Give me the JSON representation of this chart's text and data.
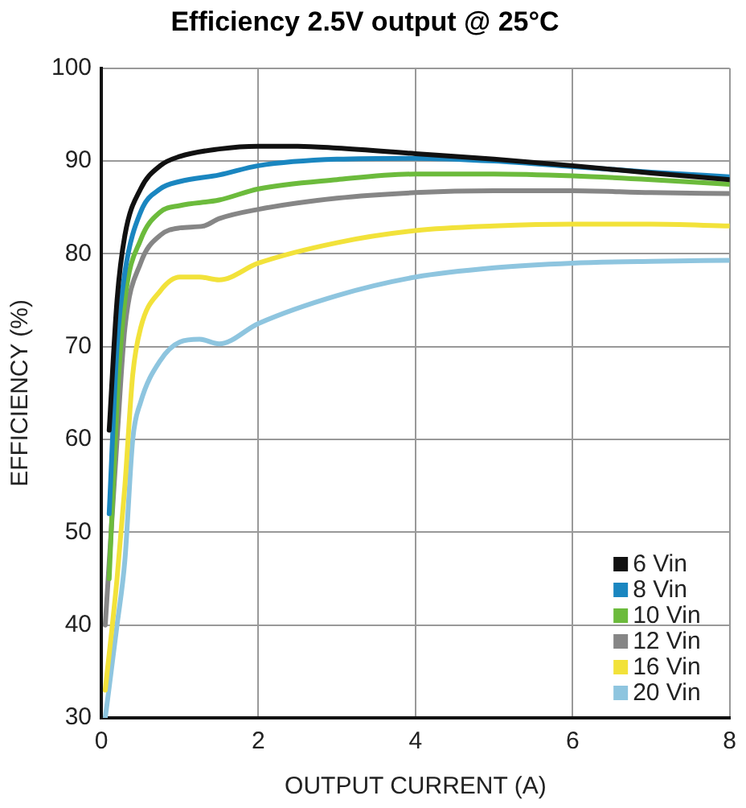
{
  "chart_data": {
    "type": "line",
    "title": "Efficiency 2.5V output @ 25°C",
    "xlabel": "OUTPUT CURRENT (A)",
    "ylabel": "EFFICIENCY (%)",
    "xlim": [
      0,
      8
    ],
    "xticks": [
      0,
      2,
      4,
      6,
      8
    ],
    "ylim": [
      30,
      100
    ],
    "yticks": [
      30,
      40,
      50,
      60,
      70,
      80,
      90,
      100
    ],
    "grid": true,
    "legend": "bottom right",
    "marker": "none",
    "line_style": "solid",
    "series": [
      {
        "name": "6 Vin",
        "color": "#111111",
        "x": [
          0.1,
          0.2,
          0.3,
          0.5,
          0.75,
          1,
          1.5,
          2,
          2.5,
          3,
          4,
          5,
          6,
          7,
          8
        ],
        "values": [
          61,
          75,
          82,
          87,
          89.5,
          90.5,
          91.3,
          91.6,
          91.6,
          91.4,
          90.8,
          90.2,
          89.5,
          88.7,
          88
        ]
      },
      {
        "name": "8 Vin",
        "color": "#1a86c0",
        "x": [
          0.1,
          0.2,
          0.3,
          0.5,
          0.75,
          1,
          1.5,
          2,
          3,
          4,
          5,
          6,
          7,
          8
        ],
        "values": [
          52,
          70,
          78,
          84.5,
          87,
          87.8,
          88.5,
          89.5,
          90.2,
          90.3,
          90,
          89.4,
          88.8,
          88.3
        ]
      },
      {
        "name": "10 Vin",
        "color": "#6cbb3c",
        "x": [
          0.1,
          0.2,
          0.3,
          0.5,
          0.75,
          1,
          1.5,
          2,
          3,
          4,
          5,
          6,
          7,
          8
        ],
        "values": [
          45,
          64,
          75,
          81.5,
          84.5,
          85.2,
          85.8,
          87,
          88,
          88.6,
          88.6,
          88.4,
          88,
          87.5
        ]
      },
      {
        "name": "12 Vin",
        "color": "#868686",
        "x": [
          0.05,
          0.2,
          0.3,
          0.5,
          0.75,
          1,
          1.3,
          1.5,
          2,
          3,
          4,
          5,
          6,
          7,
          8
        ],
        "values": [
          40,
          60,
          72,
          79,
          82,
          82.8,
          83,
          83.8,
          84.8,
          86,
          86.6,
          86.8,
          86.8,
          86.6,
          86.5
        ]
      },
      {
        "name": "16 Vin",
        "color": "#f2e23a",
        "x": [
          0.05,
          0.2,
          0.3,
          0.4,
          0.5,
          0.75,
          1,
          1.25,
          1.5,
          2,
          3,
          4,
          5,
          6,
          7,
          8
        ],
        "values": [
          33,
          45,
          55,
          67,
          72,
          76,
          77.5,
          77.5,
          77.2,
          79,
          81.2,
          82.5,
          83,
          83.2,
          83.2,
          83
        ]
      },
      {
        "name": "20 Vin",
        "color": "#8ec5df",
        "x": [
          0.05,
          0.2,
          0.3,
          0.4,
          0.5,
          0.75,
          1,
          1.25,
          1.5,
          2,
          3,
          4,
          5,
          6,
          7,
          8
        ],
        "values": [
          30,
          40,
          47,
          60,
          64,
          68.5,
          70.5,
          70.8,
          70.3,
          72.5,
          75.5,
          77.5,
          78.5,
          79,
          79.2,
          79.3
        ]
      }
    ]
  }
}
